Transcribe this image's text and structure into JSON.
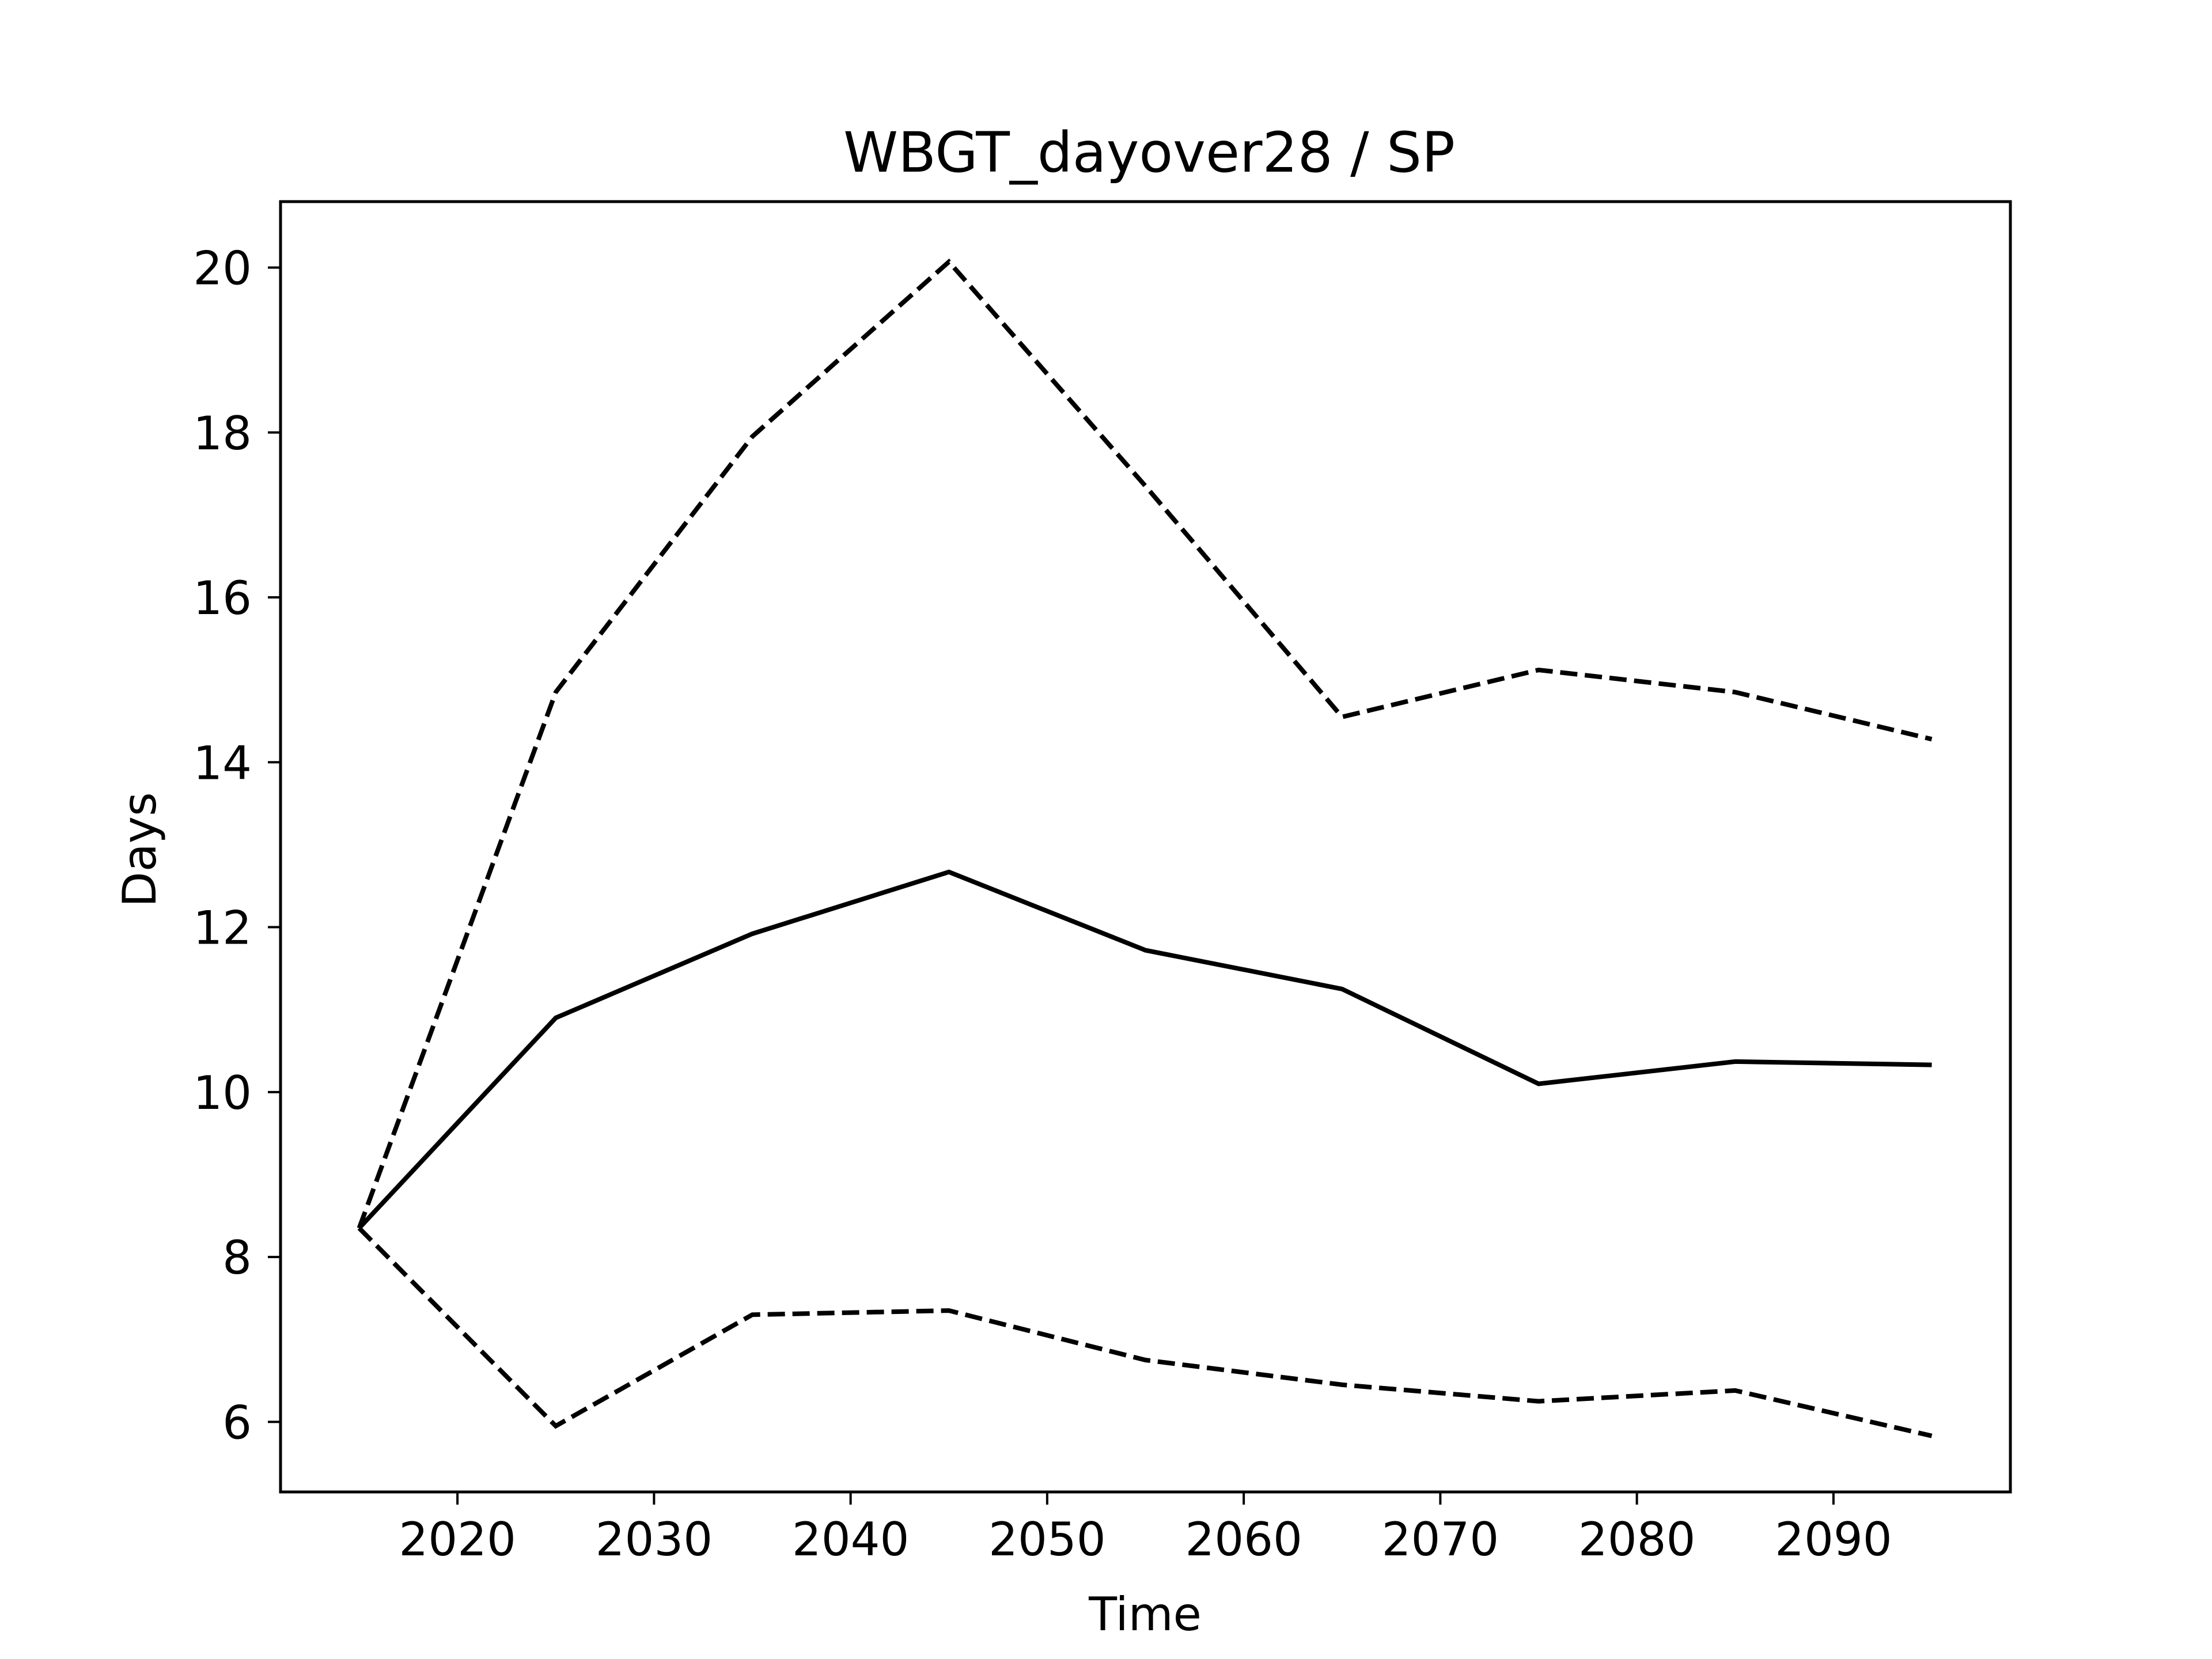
{
  "chart_data": {
    "type": "line",
    "title": "WBGT_dayover28 / SP",
    "xlabel": "Time",
    "ylabel": "Days",
    "xlim": [
      2011,
      2099
    ],
    "ylim": [
      5.15,
      20.8
    ],
    "grid": false,
    "xticks": [
      2020,
      2030,
      2040,
      2050,
      2060,
      2070,
      2080,
      2090
    ],
    "yticks": [
      6,
      8,
      10,
      12,
      14,
      16,
      18,
      20
    ],
    "x": [
      2015,
      2025,
      2035,
      2045,
      2055,
      2065,
      2075,
      2085,
      2095
    ],
    "series": [
      {
        "style": "solid",
        "color": "#000000",
        "values": [
          8.35,
          10.9,
          11.92,
          12.67,
          11.72,
          11.25,
          10.1,
          10.37,
          10.33
        ]
      },
      {
        "style": "dashed",
        "color": "#000000",
        "values": [
          8.35,
          14.85,
          17.95,
          20.07,
          17.35,
          14.55,
          15.12,
          14.85,
          14.28
        ]
      },
      {
        "style": "dashed",
        "color": "#000000",
        "values": [
          8.35,
          5.95,
          7.3,
          7.35,
          6.75,
          6.45,
          6.25,
          6.38,
          5.83
        ]
      }
    ]
  }
}
